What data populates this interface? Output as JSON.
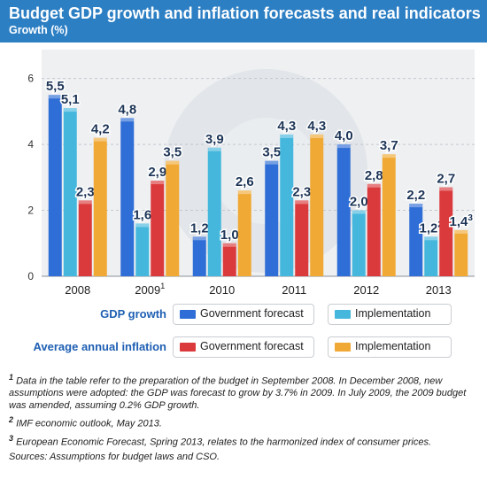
{
  "title": "Budget GDP growth and inflation forecasts and real indicators",
  "subtitle": "Growth (%)",
  "colors": {
    "header_bg": "#2d7fc4",
    "gdp_label": "#1e5fb3",
    "inflation_label": "#1e5fb3",
    "gdp_gov": "#2f6ed6",
    "gdp_impl": "#45b7dd",
    "infl_gov": "#db3a3c",
    "infl_impl": "#f0a935",
    "value_label": "#1d3557"
  },
  "legend": {
    "gdp_label": "GDP growth",
    "inflation_label": "Average annual inflation",
    "gov_forecast": "Government forecast",
    "implementation": "Implementation"
  },
  "chart_data": {
    "type": "bar",
    "categories": [
      "2008",
      "2009",
      "2010",
      "2011",
      "2012",
      "2013"
    ],
    "category_superscripts": [
      "",
      "1",
      "",
      "",
      "",
      ""
    ],
    "ylim": [
      0,
      6.5
    ],
    "yticks": [
      0,
      2,
      4,
      6
    ],
    "grid": true,
    "series": [
      {
        "name": "Government forecast",
        "group": "GDP growth",
        "values": [
          5.5,
          4.8,
          1.2,
          3.5,
          4.0,
          2.2
        ],
        "labels": [
          "5,5",
          "4,8",
          "1,2",
          "3,5",
          "4,0",
          "2,2"
        ],
        "label_sup": [
          "",
          "",
          "",
          "",
          "",
          ""
        ]
      },
      {
        "name": "Implementation",
        "group": "GDP growth",
        "values": [
          5.1,
          1.6,
          3.9,
          4.3,
          2.0,
          1.2
        ],
        "labels": [
          "5,1",
          "1,6",
          "3,9",
          "4,3",
          "2,0",
          "1,2"
        ],
        "label_sup": [
          "",
          "",
          "",
          "",
          "",
          "2"
        ]
      },
      {
        "name": "Government forecast",
        "group": "Average annual inflation",
        "values": [
          2.3,
          2.9,
          1.0,
          2.3,
          2.8,
          2.7
        ],
        "labels": [
          "2,3",
          "2,9",
          "1,0",
          "2,3",
          "2,8",
          "2,7"
        ],
        "label_sup": [
          "",
          "",
          "",
          "",
          "",
          ""
        ]
      },
      {
        "name": "Implementation",
        "group": "Average annual inflation",
        "values": [
          4.2,
          3.5,
          2.6,
          4.3,
          3.7,
          1.4
        ],
        "labels": [
          "4,2",
          "3,5",
          "2,6",
          "4,3",
          "3,7",
          "1,4"
        ],
        "label_sup": [
          "",
          "",
          "",
          "",
          "",
          "3"
        ]
      }
    ]
  },
  "notes": [
    {
      "sup": "1",
      "text": "Data in the table refer to the preparation of the budget in September 2008. In December 2008, new assumptions were adopted: the GDP was forecast to grow by 3.7% in 2009. In July 2009, the 2009 budget was amended, assuming 0.2% GDP growth."
    },
    {
      "sup": "2",
      "text": "IMF economic outlook, May 2013."
    },
    {
      "sup": "3",
      "text": "European Economic Forecast, Spring 2013, relates to the harmonized index of consumer prices."
    }
  ],
  "source": "Sources: Assumptions for budget laws and CSO."
}
